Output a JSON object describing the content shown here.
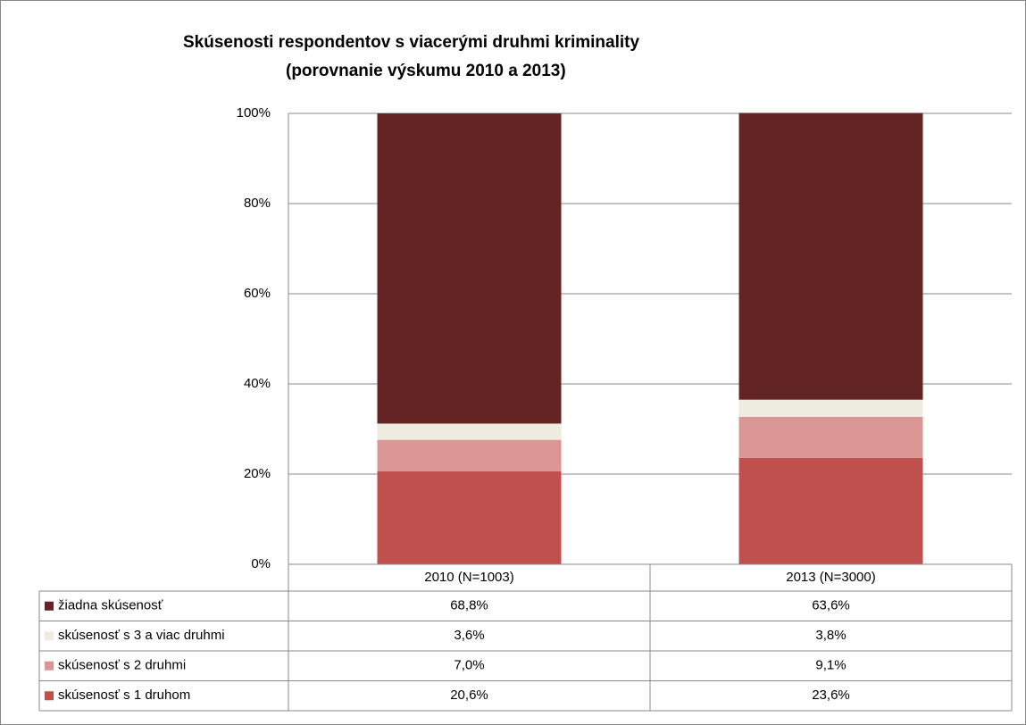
{
  "chart_data": {
    "type": "stacked_bar",
    "title": [
      "Skúsenosti respondentov s viacerými druhmi kriminality",
      "(porovnanie výskumu 2010 a 2013)"
    ],
    "categories": [
      "2010 (N=1003)",
      "2013 (N=3000)"
    ],
    "series": [
      {
        "name": "skúsenosť s 1 druhom",
        "color": "#c0504d",
        "values": [
          20.6,
          23.6
        ],
        "value_labels": [
          "20,6%",
          "23,6%"
        ]
      },
      {
        "name": "skúsenosť s 2 druhmi",
        "color": "#d99694",
        "values": [
          7.0,
          9.1
        ],
        "value_labels": [
          "7,0%",
          "9,1%"
        ]
      },
      {
        "name": "skúsenosť s 3 a viac druhmi",
        "color": "#eeece1",
        "values": [
          3.6,
          3.8
        ],
        "value_labels": [
          "3,6%",
          "3,8%"
        ]
      },
      {
        "name": "žiadna skúsenosť",
        "color": "#632523",
        "values": [
          68.8,
          63.6
        ],
        "value_labels": [
          "68,8%",
          "63,6%"
        ]
      }
    ],
    "ylim": [
      0,
      100
    ],
    "yticks": [
      {
        "value": 0,
        "label": "0%"
      },
      {
        "value": 20,
        "label": "20%"
      },
      {
        "value": 40,
        "label": "40%"
      },
      {
        "value": 60,
        "label": "60%"
      },
      {
        "value": 80,
        "label": "80%"
      },
      {
        "value": 100,
        "label": "100%"
      }
    ],
    "grid": true
  }
}
